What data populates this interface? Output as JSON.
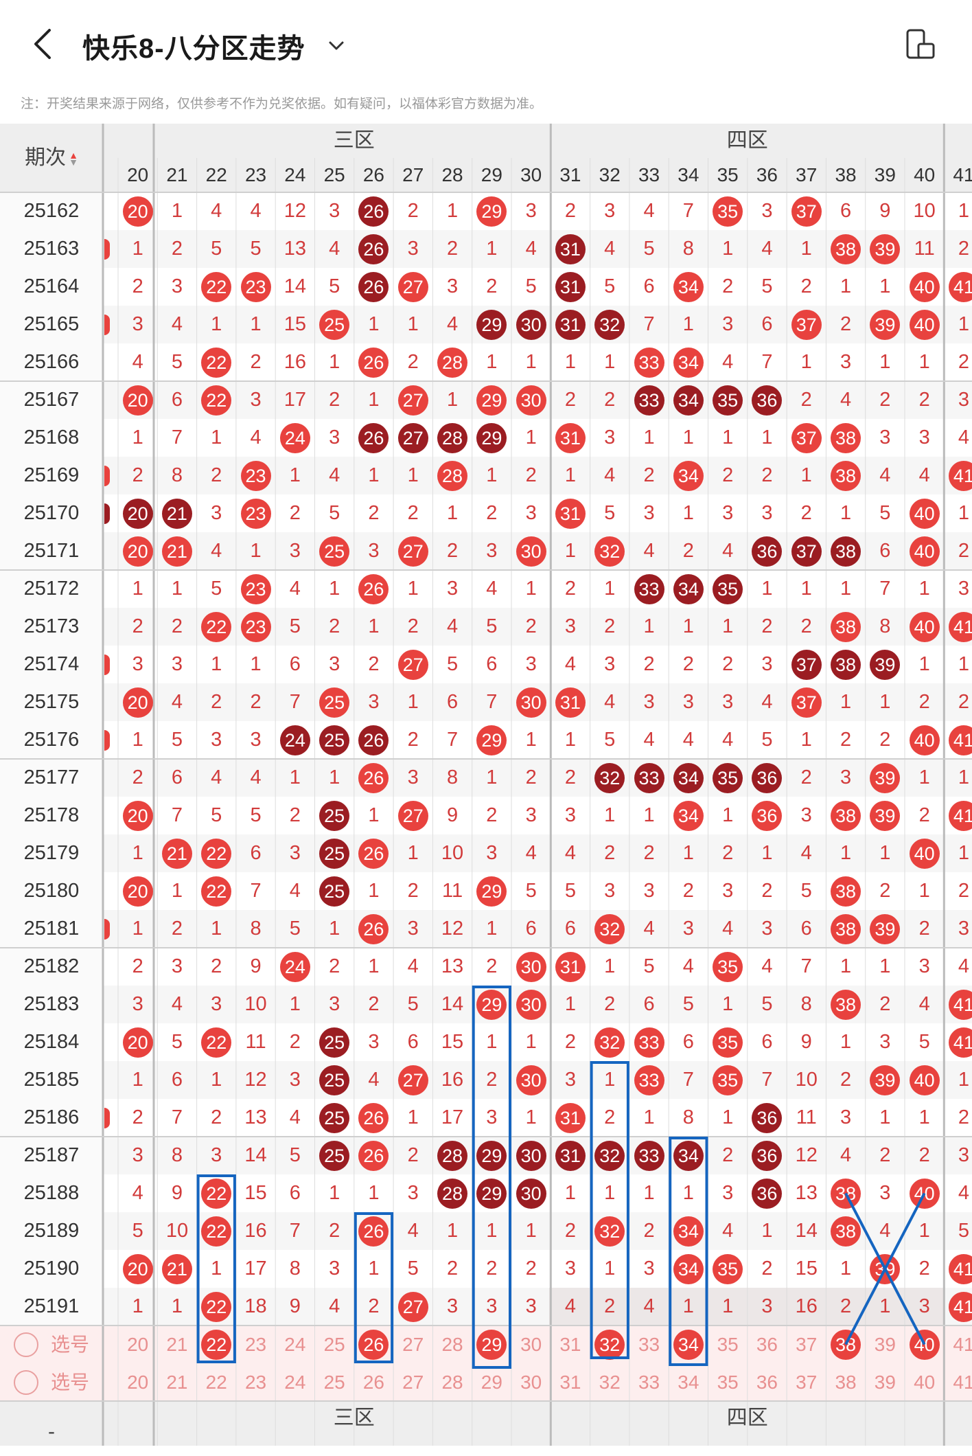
{
  "header": {
    "title": "快乐8-八分区走势",
    "notice": "注：开奖结果来源于网络，仅供参考不作为兑奖依据。如有疑问，以福体彩官方数据为准。"
  },
  "table": {
    "period_header": "期次",
    "zones": [
      "三区",
      "四区"
    ],
    "columns": [
      "20",
      "21",
      "22",
      "23",
      "24",
      "25",
      "26",
      "27",
      "28",
      "29",
      "30",
      "31",
      "32",
      "33",
      "34",
      "35",
      "36",
      "37",
      "38",
      "39",
      "40",
      "41"
    ],
    "rows": [
      {
        "period": "25162",
        "cells": [
          "R20",
          "1",
          "4",
          "4",
          "12",
          "3",
          "D26",
          "2",
          "1",
          "R29",
          "3",
          "2",
          "3",
          "4",
          "7",
          "R35",
          "3",
          "R37",
          "6",
          "9",
          "10",
          "1"
        ]
      },
      {
        "period": "25163",
        "cells": [
          "1",
          "2",
          "5",
          "5",
          "13",
          "4",
          "D26",
          "3",
          "2",
          "1",
          "4",
          "D31",
          "4",
          "5",
          "8",
          "1",
          "4",
          "1",
          "R38",
          "R39",
          "11",
          "2"
        ]
      },
      {
        "period": "25164",
        "cells": [
          "2",
          "3",
          "R22",
          "R23",
          "14",
          "5",
          "D26",
          "R27",
          "3",
          "2",
          "5",
          "D31",
          "5",
          "6",
          "R34",
          "2",
          "5",
          "2",
          "1",
          "1",
          "R40",
          "R41"
        ]
      },
      {
        "period": "25165",
        "cells": [
          "3",
          "4",
          "1",
          "1",
          "15",
          "R25",
          "1",
          "1",
          "4",
          "D29",
          "D30",
          "D31",
          "D32",
          "7",
          "1",
          "3",
          "6",
          "R37",
          "2",
          "R39",
          "R40",
          "1"
        ]
      },
      {
        "period": "25166",
        "cells": [
          "4",
          "5",
          "R22",
          "2",
          "16",
          "1",
          "R26",
          "2",
          "R28",
          "1",
          "1",
          "1",
          "1",
          "R33",
          "R34",
          "4",
          "7",
          "1",
          "3",
          "1",
          "1",
          "2"
        ]
      },
      {
        "period": "25167",
        "cells": [
          "R20",
          "6",
          "R22",
          "3",
          "17",
          "2",
          "1",
          "R27",
          "1",
          "R29",
          "R30",
          "2",
          "2",
          "D33",
          "D34",
          "D35",
          "D36",
          "2",
          "4",
          "2",
          "2",
          "3"
        ]
      },
      {
        "period": "25168",
        "cells": [
          "1",
          "7",
          "1",
          "4",
          "R24",
          "3",
          "D26",
          "D27",
          "D28",
          "D29",
          "1",
          "R31",
          "3",
          "1",
          "1",
          "1",
          "1",
          "R37",
          "R38",
          "3",
          "3",
          "4"
        ]
      },
      {
        "period": "25169",
        "cells": [
          "2",
          "8",
          "2",
          "R23",
          "1",
          "4",
          "1",
          "1",
          "R28",
          "1",
          "2",
          "1",
          "4",
          "2",
          "R34",
          "2",
          "2",
          "1",
          "R38",
          "4",
          "4",
          "R41"
        ]
      },
      {
        "period": "25170",
        "cells": [
          "D20",
          "D21",
          "3",
          "R23",
          "2",
          "5",
          "2",
          "2",
          "1",
          "2",
          "3",
          "R31",
          "5",
          "3",
          "1",
          "3",
          "3",
          "2",
          "1",
          "5",
          "R40",
          "1"
        ]
      },
      {
        "period": "25171",
        "cells": [
          "R20",
          "R21",
          "4",
          "1",
          "3",
          "R25",
          "3",
          "R27",
          "2",
          "3",
          "R30",
          "1",
          "R32",
          "4",
          "2",
          "4",
          "D36",
          "D37",
          "D38",
          "6",
          "R40",
          "2"
        ]
      },
      {
        "period": "25172",
        "cells": [
          "1",
          "1",
          "5",
          "R23",
          "4",
          "1",
          "R26",
          "1",
          "3",
          "4",
          "1",
          "2",
          "1",
          "D33",
          "D34",
          "D35",
          "1",
          "1",
          "1",
          "7",
          "1",
          "3"
        ]
      },
      {
        "period": "25173",
        "cells": [
          "2",
          "2",
          "R22",
          "R23",
          "5",
          "2",
          "1",
          "2",
          "4",
          "5",
          "2",
          "3",
          "2",
          "1",
          "1",
          "1",
          "2",
          "2",
          "R38",
          "8",
          "R40",
          "R41"
        ]
      },
      {
        "period": "25174",
        "cells": [
          "3",
          "3",
          "1",
          "1",
          "6",
          "3",
          "2",
          "R27",
          "5",
          "6",
          "3",
          "4",
          "3",
          "2",
          "2",
          "2",
          "3",
          "D37",
          "D38",
          "D39",
          "1",
          "1"
        ]
      },
      {
        "period": "25175",
        "cells": [
          "R20",
          "4",
          "2",
          "2",
          "7",
          "R25",
          "3",
          "1",
          "6",
          "7",
          "R30",
          "R31",
          "4",
          "3",
          "3",
          "3",
          "4",
          "R37",
          "1",
          "1",
          "2",
          "2"
        ]
      },
      {
        "period": "25176",
        "cells": [
          "1",
          "5",
          "3",
          "3",
          "D24",
          "D25",
          "D26",
          "2",
          "7",
          "R29",
          "1",
          "1",
          "5",
          "4",
          "4",
          "4",
          "5",
          "1",
          "2",
          "2",
          "R40",
          "R41"
        ]
      },
      {
        "period": "25177",
        "cells": [
          "2",
          "6",
          "4",
          "4",
          "1",
          "1",
          "R26",
          "3",
          "8",
          "1",
          "2",
          "2",
          "D32",
          "D33",
          "D34",
          "D35",
          "D36",
          "2",
          "3",
          "R39",
          "1",
          "1"
        ]
      },
      {
        "period": "25178",
        "cells": [
          "R20",
          "7",
          "5",
          "5",
          "2",
          "D25",
          "1",
          "R27",
          "9",
          "2",
          "3",
          "3",
          "1",
          "1",
          "R34",
          "1",
          "R36",
          "3",
          "R38",
          "R39",
          "2",
          "R41"
        ]
      },
      {
        "period": "25179",
        "cells": [
          "1",
          "R21",
          "R22",
          "6",
          "3",
          "D25",
          "R26",
          "1",
          "10",
          "3",
          "4",
          "4",
          "2",
          "2",
          "1",
          "2",
          "1",
          "4",
          "1",
          "1",
          "R40",
          "1"
        ]
      },
      {
        "period": "25180",
        "cells": [
          "R20",
          "1",
          "R22",
          "7",
          "4",
          "D25",
          "1",
          "2",
          "11",
          "R29",
          "5",
          "5",
          "3",
          "3",
          "2",
          "3",
          "2",
          "5",
          "R38",
          "2",
          "1",
          "2"
        ]
      },
      {
        "period": "25181",
        "cells": [
          "1",
          "2",
          "1",
          "8",
          "5",
          "1",
          "R26",
          "3",
          "12",
          "1",
          "6",
          "6",
          "R32",
          "4",
          "3",
          "4",
          "3",
          "6",
          "R38",
          "R39",
          "2",
          "3"
        ]
      },
      {
        "period": "25182",
        "cells": [
          "2",
          "3",
          "2",
          "9",
          "R24",
          "2",
          "1",
          "4",
          "13",
          "2",
          "R30",
          "R31",
          "1",
          "5",
          "4",
          "R35",
          "4",
          "7",
          "1",
          "1",
          "3",
          "4"
        ]
      },
      {
        "period": "25183",
        "cells": [
          "3",
          "4",
          "3",
          "10",
          "1",
          "3",
          "2",
          "5",
          "14",
          "R29",
          "R30",
          "1",
          "2",
          "6",
          "5",
          "1",
          "5",
          "8",
          "R38",
          "2",
          "4",
          "R41"
        ]
      },
      {
        "period": "25184",
        "cells": [
          "R20",
          "5",
          "R22",
          "11",
          "2",
          "D25",
          "3",
          "6",
          "15",
          "1",
          "1",
          "2",
          "R32",
          "R33",
          "6",
          "R35",
          "6",
          "9",
          "1",
          "3",
          "5",
          "R41"
        ]
      },
      {
        "period": "25185",
        "cells": [
          "1",
          "6",
          "1",
          "12",
          "3",
          "D25",
          "4",
          "R27",
          "16",
          "2",
          "R30",
          "3",
          "1",
          "R33",
          "7",
          "R35",
          "7",
          "10",
          "2",
          "R39",
          "R40",
          "1"
        ]
      },
      {
        "period": "25186",
        "cells": [
          "2",
          "7",
          "2",
          "13",
          "4",
          "D25",
          "R26",
          "1",
          "17",
          "3",
          "1",
          "R31",
          "2",
          "1",
          "8",
          "1",
          "D36",
          "11",
          "3",
          "1",
          "1",
          "2"
        ]
      },
      {
        "period": "25187",
        "cells": [
          "3",
          "8",
          "3",
          "14",
          "5",
          "D25",
          "R26",
          "2",
          "D28",
          "D29",
          "D30",
          "D31",
          "D32",
          "D33",
          "D34",
          "2",
          "D36",
          "12",
          "4",
          "2",
          "2",
          "3"
        ]
      },
      {
        "period": "25188",
        "cells": [
          "4",
          "9",
          "R22",
          "15",
          "6",
          "1",
          "1",
          "3",
          "D28",
          "D29",
          "D30",
          "1",
          "1",
          "1",
          "1",
          "3",
          "D36",
          "13",
          "R38",
          "3",
          "R40",
          "4"
        ]
      },
      {
        "period": "25189",
        "cells": [
          "5",
          "10",
          "R22",
          "16",
          "7",
          "2",
          "R26",
          "4",
          "1",
          "1",
          "1",
          "2",
          "R32",
          "2",
          "R34",
          "4",
          "1",
          "14",
          "R38",
          "4",
          "1",
          "5"
        ]
      },
      {
        "period": "25190",
        "cells": [
          "R20",
          "R21",
          "1",
          "17",
          "8",
          "3",
          "1",
          "5",
          "2",
          "2",
          "2",
          "3",
          "1",
          "3",
          "R34",
          "R35",
          "2",
          "15",
          "1",
          "R39",
          "2",
          "R41"
        ]
      },
      {
        "period": "25191",
        "cells": [
          "1",
          "1",
          "R22",
          "18",
          "9",
          "4",
          "2",
          "R27",
          "3",
          "3",
          "3",
          "4",
          "2",
          "4",
          "1",
          "1",
          "3",
          "16",
          "2",
          "1",
          "3",
          "R41"
        ]
      }
    ],
    "select_rows": [
      {
        "label": "选号",
        "cells": [
          "20",
          "21",
          "R22",
          "23",
          "24",
          "25",
          "R26",
          "27",
          "28",
          "R29",
          "30",
          "31",
          "R32",
          "33",
          "R34",
          "35",
          "36",
          "37",
          "R38",
          "39",
          "R40",
          "41"
        ]
      },
      {
        "label": "选号",
        "cells": [
          "20",
          "21",
          "22",
          "23",
          "24",
          "25",
          "26",
          "27",
          "28",
          "29",
          "30",
          "31",
          "32",
          "33",
          "34",
          "35",
          "36",
          "37",
          "38",
          "39",
          "40",
          "41"
        ]
      }
    ],
    "footer_left": "-",
    "colors": {
      "red": "#e8423e",
      "dark": "#9b1d22",
      "annotation": "#1565c0"
    }
  }
}
